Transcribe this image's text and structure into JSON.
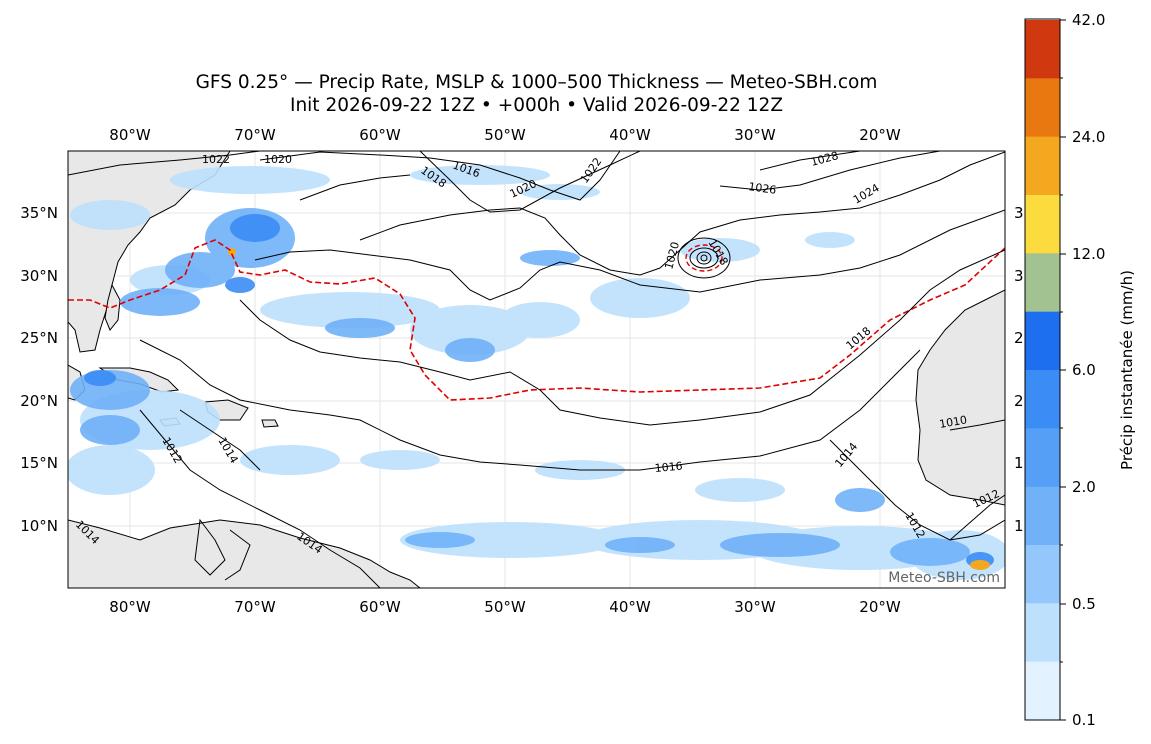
{
  "title": {
    "line1": "GFS 0.25° — Precip Rate, MSLP & 1000–500 Thickness — Meteo-SBH.com",
    "line2": "Init 2026-09-22 12Z • +000h • Valid 2026-09-22 12Z"
  },
  "map": {
    "lon_ticks": [
      "80°W",
      "70°W",
      "60°W",
      "50°W",
      "40°W",
      "30°W",
      "20°W"
    ],
    "lat_ticks": [
      "35°N",
      "30°N",
      "25°N",
      "20°N",
      "15°N",
      "10°N"
    ],
    "right_partial_ticks": [
      "3",
      "3",
      "2",
      "2",
      "1",
      "1"
    ],
    "watermark": "Meteo-SBH.com",
    "isobar_labels": [
      "1022",
      "1020",
      "1016",
      "1018",
      "1020",
      "1022",
      "1028",
      "1026",
      "1024",
      "1020",
      "1018",
      "1018",
      "1014",
      "1012",
      "1014",
      "1016",
      "1014",
      "1010",
      "1012",
      "1012",
      "1014"
    ]
  },
  "colorbar": {
    "label": "Précip instantanée (mm/h)",
    "tick_labels": [
      "42.0",
      "24.0",
      "12.0",
      "6.0",
      "2.0",
      "0.5",
      "0.1"
    ],
    "colors": [
      "#d0390f",
      "#e8780f",
      "#f4a820",
      "#fbdb3e",
      "#a3c292",
      "#1e6ef0",
      "#3b8cf5",
      "#559ff6",
      "#70b1f8",
      "#94c7fb",
      "#bde0fd",
      "#e2f2fe"
    ]
  },
  "colors": {
    "land": "#e8e8e8",
    "isobar": "#000000",
    "thickness_540": "#e00000",
    "precip_light": "#bde0fd",
    "precip_mid": "#70b1f8",
    "precip_heavy": "#3b8cf5"
  }
}
